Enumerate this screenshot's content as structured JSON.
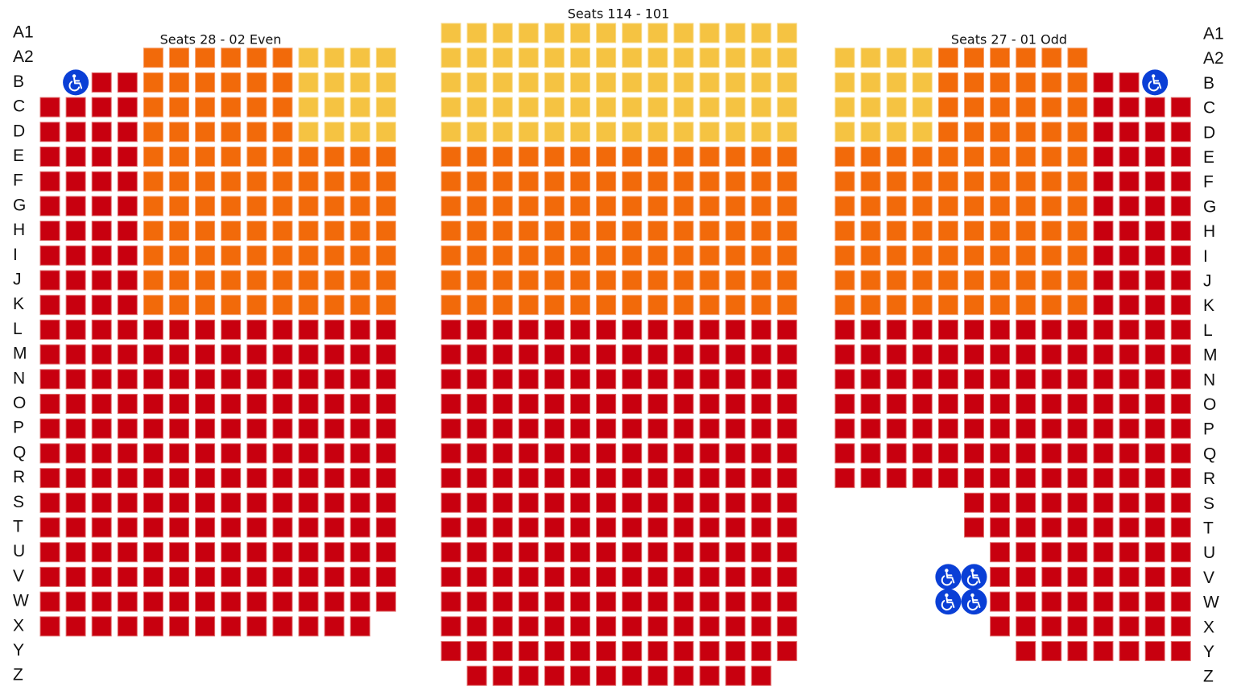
{
  "header": {
    "center_section": "Seats 114 - 101",
    "left_section": "Seats 28 - 02 Even",
    "right_section": "Seats 27 - 01 Odd"
  },
  "rows": [
    "A1",
    "A2",
    "B",
    "C",
    "D",
    "E",
    "F",
    "G",
    "H",
    "I",
    "J",
    "K",
    "L",
    "M",
    "N",
    "O",
    "P",
    "Q",
    "R",
    "S",
    "T",
    "U",
    "V",
    "W",
    "X",
    "Y",
    "Z"
  ]
}
